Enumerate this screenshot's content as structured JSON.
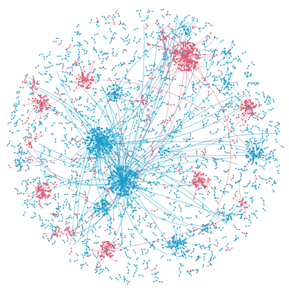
{
  "colors": {
    "background": "#ffffff",
    "group_a": "#1a9ac9",
    "group_b": "#e0566f",
    "edge_a": "#1fa3c9",
    "edge_b": "#e66a82"
  },
  "graph": {
    "layout": "force-directed",
    "clusters": [
      {
        "color_group": "b",
        "size": "large"
      },
      {
        "color_group": "a",
        "size": "large"
      },
      {
        "color_group": "a",
        "size": "large"
      },
      {
        "color_group": "a",
        "size": "medium"
      },
      {
        "color_group": "b",
        "size": "medium"
      },
      {
        "color_group": "b",
        "size": "medium"
      },
      {
        "color_group": "b",
        "size": "medium"
      },
      {
        "color_group": "a",
        "size": "medium"
      },
      {
        "color_group": "b",
        "size": "medium"
      },
      {
        "color_group": "a",
        "size": "medium"
      },
      {
        "color_group": "b",
        "size": "medium"
      },
      {
        "color_group": "a",
        "size": "medium"
      },
      {
        "color_group": "b",
        "size": "medium"
      },
      {
        "color_group": "b",
        "size": "small"
      },
      {
        "color_group": "a",
        "size": "small"
      },
      {
        "color_group": "b",
        "size": "small"
      },
      {
        "color_group": "a",
        "size": "small"
      },
      {
        "color_group": "a",
        "size": "small"
      },
      {
        "color_group": "a",
        "size": "small"
      },
      {
        "color_group": "b",
        "size": "small"
      },
      {
        "color_group": "a",
        "size": "small"
      },
      {
        "color_group": "b",
        "size": "small"
      },
      {
        "color_group": "a",
        "size": "small"
      },
      {
        "color_group": "b",
        "size": "small"
      },
      {
        "color_group": "a",
        "size": "small"
      },
      {
        "color_group": "b",
        "size": "small"
      },
      {
        "color_group": "b",
        "size": "small"
      }
    ]
  }
}
